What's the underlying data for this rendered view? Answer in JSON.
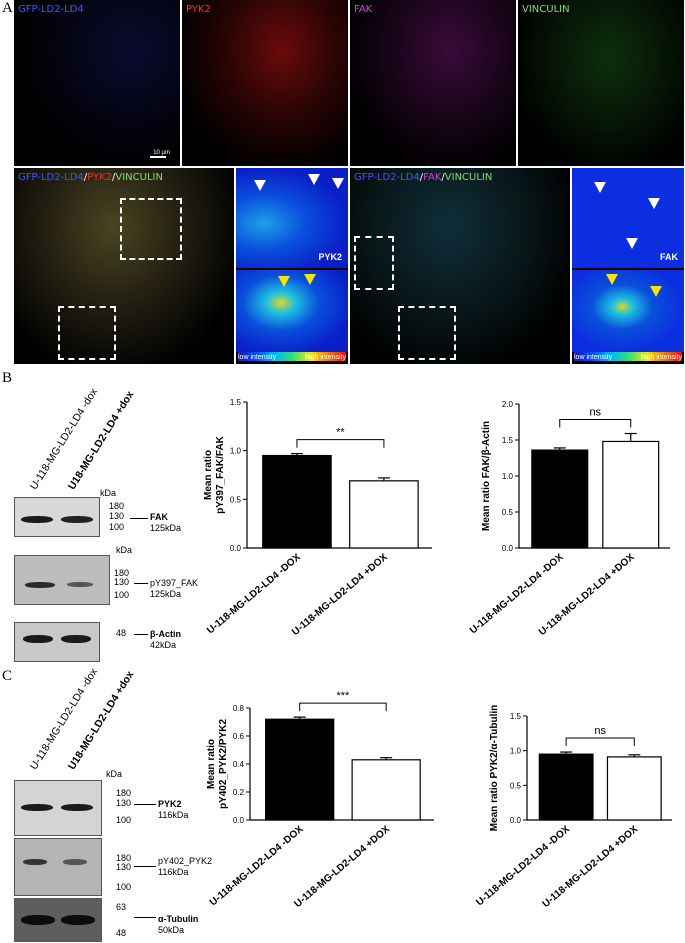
{
  "panel_a": {
    "letter": "A",
    "channels": [
      {
        "label": "GFP-LD2-LD4",
        "color": "#3b5bff"
      },
      {
        "label": "PYK2",
        "color": "#ff2a2a"
      },
      {
        "label": "FAK",
        "color": "#e23be0"
      },
      {
        "label": "VINCULIN",
        "color": "#7fe06a"
      }
    ],
    "scale_bar": "10 µm",
    "merge_left": {
      "p1": "GFP-LD2-LD4",
      "s1": "/",
      "p2": "PYK2",
      "s2": "/",
      "p3": "VINCULIN"
    },
    "merge_right": {
      "p1": "GFP-LD2-LD4",
      "s1": "/",
      "p2": "FAK",
      "s2": "/",
      "p3": "VINCULIN"
    },
    "heat_left_label": "PYK2",
    "heat_right_label": "FAK",
    "low": "low intensity",
    "high": "high intensity"
  },
  "panel_b": {
    "letter": "B",
    "lanes": [
      "U-118-MG-LD2-LD4 -dox",
      "U18-MG-LD2-LD4 +dox"
    ],
    "kda": "kDa",
    "blot1": {
      "markers": [
        "180",
        "130",
        "100"
      ],
      "protein": "FAK",
      "size": "125kDa"
    },
    "blot2": {
      "kda": "kDa",
      "markers": [
        "180",
        "130",
        "100"
      ],
      "protein": "pY397_FAK",
      "size": "125kDa"
    },
    "blot3": {
      "markers": [
        "48"
      ],
      "protein": "β-Actin",
      "size": "42kDa"
    }
  },
  "panel_c": {
    "letter": "C",
    "lanes": [
      "U-118-MG-LD2-LD4 -dox",
      "U18-MG-LD2-LD4 +dox"
    ],
    "kda": "kDa",
    "blot1": {
      "markers": [
        "180",
        "130",
        "100"
      ],
      "protein": "PYK2",
      "size": "116kDa"
    },
    "blot2": {
      "markers": [
        "180",
        "130",
        "100"
      ],
      "protein": "pY402_PYK2",
      "size": "116kDa"
    },
    "blot3": {
      "markers": [
        "63",
        "48"
      ],
      "protein": "α-Tubulin",
      "size": "50kDa"
    }
  },
  "chart_data": [
    {
      "type": "bar",
      "id": "b1",
      "ylabel": "Mean ratio\npY397_FAK/FAK",
      "categories": [
        "U-118-MG-LD2-LD4 -DOX",
        "U-118-MG-LD2-LD4 +DOX"
      ],
      "values": [
        0.95,
        0.69
      ],
      "errors": [
        0.02,
        0.03
      ],
      "ylim": [
        0,
        1.5
      ],
      "ticks": [
        "0.0",
        "0.5",
        "1.0",
        "1.5"
      ],
      "significance": "**"
    },
    {
      "type": "bar",
      "id": "b2",
      "ylabel": "Mean ratio FAK/β-Actin",
      "categories": [
        "U-118-MG-LD2-LD4 -DOX",
        "U-118-MG-LD2-LD4 +DOX"
      ],
      "values": [
        1.36,
        1.48
      ],
      "errors": [
        0.03,
        0.11
      ],
      "ylim": [
        0,
        2.0
      ],
      "ticks": [
        "0.0",
        "0.5",
        "1.0",
        "1.5",
        "2.0"
      ],
      "significance": "ns"
    },
    {
      "type": "bar",
      "id": "c1",
      "ylabel": "Mean ratio\npY402_PYK2/PYK2",
      "categories": [
        "U-118-MG-LD2-LD4 -DOX",
        "U-118-MG-LD2-LD4 +DOX"
      ],
      "values": [
        0.72,
        0.43
      ],
      "errors": [
        0.015,
        0.015
      ],
      "ylim": [
        0,
        0.8
      ],
      "ticks": [
        "0.0",
        "0.2",
        "0.4",
        "0.6",
        "0.8"
      ],
      "significance": "***"
    },
    {
      "type": "bar",
      "id": "c2",
      "ylabel": "Mean ratio PYK2/α-Tubulin",
      "categories": [
        "U-118-MG-LD2-LD4 -DOX",
        "U-118-MG-LD2-LD4 +DOX"
      ],
      "values": [
        0.95,
        0.91
      ],
      "errors": [
        0.03,
        0.03
      ],
      "ylim": [
        0,
        1.5
      ],
      "ticks": [
        "0.0",
        "0.5",
        "1.0",
        "1.5"
      ],
      "significance": "ns"
    }
  ]
}
